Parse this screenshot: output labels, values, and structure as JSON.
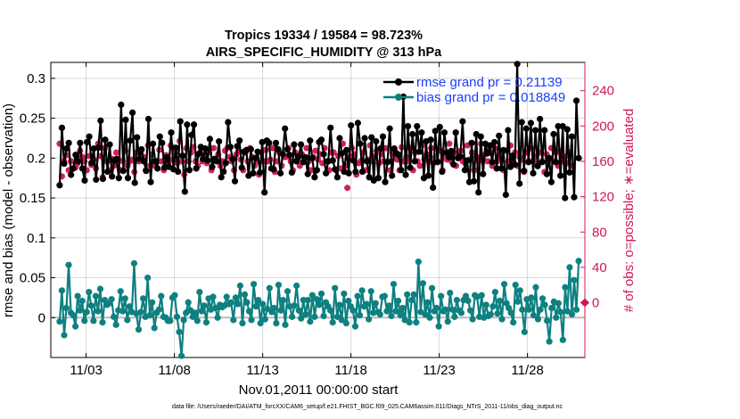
{
  "chart_data": {
    "type": "line",
    "title": "Tropics 19334 / 19584 = 98.723%",
    "subtitle": "AIRS_SPECIFIC_HUMIDITY @ 313 hPa",
    "xlabel": "Nov.01,2011 00:00:00 start",
    "ylabel_left": "rmse and bias (model - observation)",
    "ylabel_right": "# of obs: o=possible; ∗=evaluated",
    "xlim": [
      0.5,
      30.75
    ],
    "ylim_left": [
      -0.05,
      0.32
    ],
    "ylim_right": [
      -62,
      272
    ],
    "x_ticks": [
      {
        "value": 2.5,
        "label": "11/03"
      },
      {
        "value": 7.5,
        "label": "11/08"
      },
      {
        "value": 12.5,
        "label": "11/13"
      },
      {
        "value": 17.5,
        "label": "11/18"
      },
      {
        "value": 22.5,
        "label": "11/23"
      },
      {
        "value": 27.5,
        "label": "11/28"
      }
    ],
    "y_ticks_left": [
      {
        "value": 0,
        "label": "0"
      },
      {
        "value": 0.05,
        "label": "0.05"
      },
      {
        "value": 0.1,
        "label": "0.1"
      },
      {
        "value": 0.15,
        "label": "0.15"
      },
      {
        "value": 0.2,
        "label": "0.2"
      },
      {
        "value": 0.25,
        "label": "0.25"
      },
      {
        "value": 0.3,
        "label": "0.3"
      }
    ],
    "y_ticks_right": [
      {
        "value": 0,
        "label": "0"
      },
      {
        "value": 40,
        "label": "40"
      },
      {
        "value": 80,
        "label": "80"
      },
      {
        "value": 120,
        "label": "120"
      },
      {
        "value": 160,
        "label": "160"
      },
      {
        "value": 200,
        "label": "200"
      },
      {
        "value": 240,
        "label": "240"
      }
    ],
    "legend": [
      {
        "label": "rmse grand pr = 0.21139",
        "color": "#000000"
      },
      {
        "label": "bias grand pr = 0.018849",
        "color": "#0f8080"
      }
    ],
    "series": [
      {
        "name": "rmse",
        "color": "#000000",
        "axis": "left",
        "values": [
          0.166,
          0.238,
          0.193,
          0.212,
          0.219,
          0.179,
          0.187,
          0.204,
          0.196,
          0.219,
          0.187,
          0.172,
          0.22,
          0.227,
          0.194,
          0.212,
          0.173,
          0.213,
          0.247,
          0.174,
          0.223,
          0.183,
          0.217,
          0.177,
          0.197,
          0.199,
          0.175,
          0.267,
          0.184,
          0.248,
          0.175,
          0.222,
          0.257,
          0.169,
          0.226,
          0.199,
          0.211,
          0.196,
          0.184,
          0.249,
          0.17,
          0.218,
          0.196,
          0.187,
          0.227,
          0.219,
          0.188,
          0.201,
          0.189,
          0.232,
          0.186,
          0.213,
          0.183,
          0.246,
          0.203,
          0.158,
          0.242,
          0.185,
          0.229,
          0.242,
          0.187,
          0.205,
          0.214,
          0.199,
          0.212,
          0.197,
          0.224,
          0.189,
          0.199,
          0.196,
          0.221,
          0.176,
          0.183,
          0.194,
          0.245,
          0.214,
          0.199,
          0.171,
          0.215,
          0.222,
          0.188,
          0.208,
          0.21,
          0.178,
          0.211,
          0.181,
          0.2,
          0.208,
          0.182,
          0.22,
          0.157,
          0.222,
          0.219,
          0.187,
          0.186,
          0.219,
          0.211,
          0.181,
          0.205,
          0.237,
          0.211,
          0.204,
          0.182,
          0.217,
          0.196,
          0.202,
          0.217,
          0.195,
          0.201,
          0.18,
          0.222,
          0.2,
          0.176,
          0.185,
          0.22,
          0.223,
          0.205,
          0.181,
          0.196,
          0.238,
          0.197,
          0.186,
          0.176,
          0.225,
          0.206,
          0.183,
          0.21,
          0.181,
          0.241,
          0.197,
          0.183,
          0.244,
          0.218,
          0.183,
          0.225,
          0.196,
          0.176,
          0.226,
          0.172,
          0.221,
          0.175,
          0.212,
          0.227,
          0.17,
          0.195,
          0.237,
          0.178,
          0.212,
          0.206,
          0.204,
          0.185,
          0.277,
          0.179,
          0.24,
          0.188,
          0.23,
          0.196,
          0.24,
          0.208,
          0.232,
          0.175,
          0.221,
          0.178,
          0.223,
          0.163,
          0.234,
          0.195,
          0.239,
          0.183,
          0.232,
          0.207,
          0.201,
          0.209,
          0.192,
          0.232,
          0.2,
          0.202,
          0.246,
          0.185,
          0.197,
          0.17,
          0.219,
          0.171,
          0.23,
          0.157,
          0.227,
          0.18,
          0.218,
          0.206,
          0.216,
          0.195,
          0.22,
          0.187,
          0.228,
          0.187,
          0.21,
          0.154,
          0.235,
          0.189,
          0.203,
          0.192,
          0.318,
          0.168,
          0.245,
          0.184,
          0.237,
          0.195,
          0.244,
          0.181,
          0.235,
          0.19,
          0.249,
          0.195,
          0.235,
          0.18,
          0.2,
          0.17,
          0.23,
          0.195,
          0.24,
          0.178,
          0.24,
          0.15,
          0.236,
          0.182,
          0.227,
          0.151,
          0.272,
          0.2
        ]
      },
      {
        "name": "bias",
        "color": "#0f8080",
        "axis": "left",
        "values": [
          -0.005,
          0.034,
          -0.022,
          0.012,
          0.066,
          0.006,
          0.003,
          -0.011,
          0.027,
          0.009,
          0.021,
          -0.004,
          0.007,
          0.032,
          0.015,
          -0.004,
          0.027,
          0.008,
          0.036,
          -0.006,
          0.022,
          0.016,
          0.018,
          0.023,
          0.001,
          -0.009,
          0.009,
          0.033,
          0.008,
          0.024,
          -0.003,
          0.014,
          0.007,
          0.068,
          0.005,
          -0.015,
          0.007,
          0.024,
          0.001,
          0.05,
          0.003,
          0.019,
          -0.013,
          0.006,
          0.01,
          0.027,
          0.001,
          0.0,
          -0.004,
          -0.004,
          0.025,
          0.028,
          0.001,
          -0.018,
          -0.048,
          -0.003,
          0.006,
          0.019,
          0.009,
          0.001,
          0.006,
          -0.004,
          0.032,
          0.008,
          0.015,
          -0.006,
          0.024,
          0.01,
          0.026,
          0.012,
          0.0,
          0.016,
          0.013,
          0.015,
          0.026,
          0.017,
          0.019,
          -0.003,
          0.025,
          0.017,
          0.04,
          -0.007,
          0.029,
          0.019,
          0.008,
          -0.003,
          0.042,
          0.014,
          0.022,
          -0.007,
          0.017,
          -0.002,
          0.011,
          0.037,
          0.007,
          0.012,
          -0.007,
          0.041,
          0.009,
          0.022,
          -0.009,
          0.033,
          0.014,
          0.001,
          0.015,
          0.04,
          0.009,
          -0.001,
          0.022,
          0.004,
          0.022,
          -0.005,
          0.028,
          0.001,
          0.023,
          0.016,
          0.03,
          0.002,
          0.019,
          0.014,
          0.009,
          -0.006,
          0.037,
          0.001,
          0.016,
          -0.003,
          0.03,
          -0.007,
          0.021,
          0.014,
          0.009,
          -0.011,
          0.027,
          0.003,
          0.034,
          0.014,
          0.017,
          -0.002,
          0.033,
          0.006,
          0.018,
          0.007,
          0.004,
          0.026,
          0.027,
          0.008,
          0.015,
          0.002,
          0.042,
          0.008,
          0.021,
          0.003,
          0.012,
          -0.003,
          0.029,
          -0.006,
          0.022,
          0.029,
          -0.006,
          0.07,
          0.007,
          0.043,
          0.004,
          0.019,
          0.0,
          0.037,
          0.008,
          0.012,
          -0.011,
          0.027,
          0.008,
          0.01,
          -0.005,
          0.031,
          0.01,
          0.001,
          0.022,
          0.009,
          0.006,
          0.022,
          0.027,
          0.021,
          0.009,
          -0.002,
          0.028,
          0.026,
          0.001,
          0.028,
          0.0,
          0.016,
          0.002,
          0.004,
          0.014,
          0.032,
          0.005,
          0.021,
          -0.002,
          0.042,
          0.018,
          0.012,
          0.006,
          -0.006,
          0.041,
          0.02,
          0.034,
          0.01,
          -0.018,
          0.023,
          0.01,
          0.025,
          0.003,
          0.038,
          -0.002,
          0.01,
          0.024,
          0.016,
          -0.004,
          -0.03,
          0.012,
          0.02,
          0.0,
          0.018,
          0.007,
          -0.028,
          0.038,
          0.008,
          0.063,
          0.004,
          0.047,
          0.01,
          0.071
        ]
      },
      {
        "name": "obs_possible",
        "color": "#d0175a",
        "axis": "right",
        "marker": "o",
        "values": [
          180,
          143,
          160,
          167,
          150,
          160,
          152,
          153,
          158,
          172,
          165,
          160,
          150,
          166,
          156,
          162,
          152,
          180,
          166,
          142,
          175,
          160,
          150,
          163,
          155,
          170,
          162,
          150,
          160,
          172,
          155,
          160,
          162,
          148,
          170,
          160,
          172,
          165,
          150,
          178,
          155,
          168,
          155,
          160,
          173,
          160,
          150,
          167,
          158,
          178,
          162,
          170,
          158,
          183,
          160,
          145,
          175,
          160,
          170,
          176,
          160,
          155,
          170,
          160,
          166,
          158,
          170,
          150,
          175,
          162,
          168,
          155,
          160,
          172,
          175,
          165,
          160,
          150,
          168,
          172,
          162,
          150,
          170,
          160,
          175,
          165,
          155,
          160,
          145,
          170,
          160,
          173,
          160,
          162,
          175,
          148,
          160,
          170,
          155,
          165,
          165,
          175,
          160,
          150,
          170,
          162,
          155,
          168,
          160,
          175,
          160,
          150,
          165,
          172,
          162,
          168,
          158,
          175,
          160,
          150,
          170,
          170,
          150,
          166,
          152,
          180,
          155,
          130,
          165,
          175,
          168,
          145,
          158,
          160,
          170,
          150,
          162,
          178,
          160,
          165,
          172,
          158,
          168,
          160,
          175,
          160,
          150,
          170,
          168,
          162,
          150,
          176,
          160,
          165,
          160,
          175,
          150,
          170,
          160,
          155,
          178,
          162,
          168,
          160,
          175,
          158,
          165,
          160,
          172,
          150,
          168,
          162,
          180,
          160,
          170,
          155,
          165,
          172,
          160,
          158,
          178,
          162,
          170,
          150,
          165,
          160,
          180,
          162,
          168,
          160,
          170,
          155,
          175,
          160,
          165,
          168,
          150,
          172,
          160,
          178,
          160,
          170,
          155,
          165,
          162,
          148,
          170,
          160,
          175,
          160,
          165,
          158,
          170,
          160,
          148,
          168,
          162,
          175,
          160,
          170,
          155,
          172,
          160,
          165,
          158,
          170,
          155
        ]
      },
      {
        "name": "obs_evaluated",
        "color": "#d0175a",
        "axis": "right",
        "marker": "*",
        "values": [
          180,
          143,
          160,
          167,
          150,
          160,
          152,
          153,
          158,
          172,
          165,
          160,
          150,
          166,
          156,
          162,
          152,
          180,
          166,
          142,
          175,
          160,
          150,
          163,
          155,
          170,
          162,
          150,
          160,
          172,
          155,
          160,
          162,
          148,
          170,
          160,
          172,
          165,
          150,
          178,
          155,
          168,
          155,
          160,
          173,
          160,
          150,
          167,
          158,
          178,
          162,
          170,
          158,
          183,
          160,
          145,
          175,
          160,
          170,
          176,
          160,
          155,
          170,
          160,
          166,
          158,
          170,
          150,
          175,
          162,
          168,
          155,
          160,
          172,
          175,
          165,
          160,
          150,
          168,
          172,
          162,
          150,
          170,
          160,
          175,
          165,
          155,
          160,
          145,
          170,
          160,
          173,
          160,
          162,
          175,
          148,
          160,
          170,
          155,
          165,
          165,
          175,
          160,
          150,
          170,
          162,
          155,
          168,
          160,
          175,
          160,
          150,
          165,
          172,
          162,
          168,
          158,
          175,
          160,
          150,
          170,
          170,
          150,
          166,
          152,
          180,
          155,
          130,
          165,
          175,
          168,
          145,
          158,
          160,
          170,
          150,
          162,
          178,
          160,
          165,
          172,
          158,
          168,
          160,
          175,
          160,
          150,
          170,
          168,
          162,
          150,
          176,
          160,
          165,
          160,
          175,
          150,
          170,
          160,
          155,
          178,
          162,
          168,
          160,
          175,
          158,
          165,
          160,
          172,
          150,
          168,
          162,
          180,
          160,
          170,
          155,
          165,
          172,
          160,
          158,
          178,
          162,
          170,
          150,
          165,
          160,
          180,
          162,
          168,
          160,
          170,
          155,
          175,
          160,
          165,
          168,
          150,
          172,
          160,
          178,
          160,
          170,
          155,
          165,
          162,
          148,
          170,
          160,
          175,
          160,
          165,
          158,
          170,
          160,
          148,
          168,
          162,
          175,
          160,
          170,
          155,
          172,
          160,
          165,
          158,
          170,
          155
        ]
      }
    ],
    "zero_line_color": "#bbbbbb",
    "right_axis_color": "#d0175a",
    "right_axis_end_value": 0
  },
  "footer": "data file: /Users/raeder/DAI/ATM_forcXX/CAM6_setup/f.e21.FHIST_BGC.f09_025.CAM6assim.011/Diags_NTrS_2011-11/obs_diag_output.nc"
}
